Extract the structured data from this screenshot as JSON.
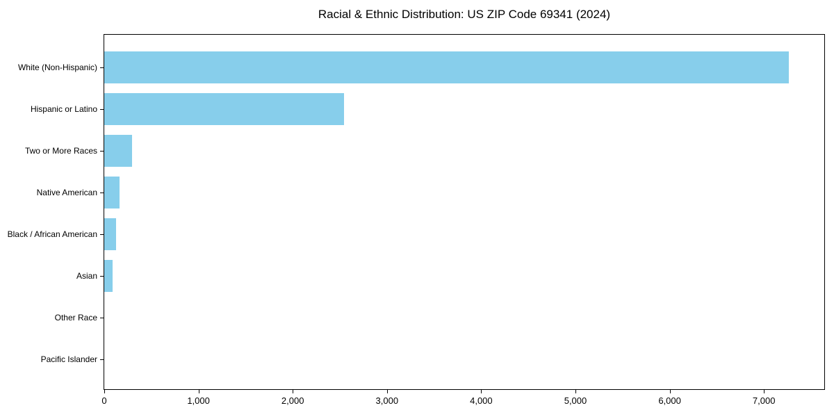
{
  "chart_data": {
    "type": "bar",
    "orientation": "horizontal",
    "title": "Racial & Ethnic Distribution: US ZIP Code 69341 (2024)",
    "categories": [
      "White (Non-Hispanic)",
      "Hispanic or Latino",
      "Two or More Races",
      "Native American",
      "Black / African American",
      "Asian",
      "Other Race",
      "Pacific Islander"
    ],
    "values": [
      7260,
      2546,
      297,
      160,
      125,
      86,
      0,
      0
    ],
    "xlabel": "",
    "ylabel": "",
    "xlim": [
      0,
      7640
    ],
    "x_ticks": [
      0,
      1000,
      2000,
      3000,
      4000,
      5000,
      6000,
      7000
    ],
    "x_tick_labels": [
      "0",
      "1,000",
      "2,000",
      "3,000",
      "4,000",
      "5,000",
      "6,000",
      "7,000"
    ],
    "bar_color": "#87CEEB",
    "grid": false,
    "legend": "none",
    "plot_background": "#ffffff",
    "spine_color": "#000000"
  }
}
